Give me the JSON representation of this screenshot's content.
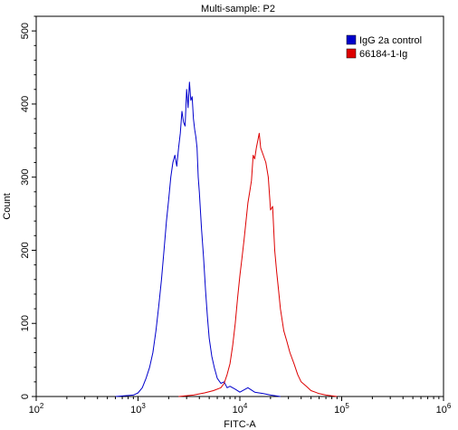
{
  "chart_data": {
    "type": "line",
    "title": "Multi-sample: P2",
    "xlabel": "FITC-A",
    "ylabel": "Count",
    "x_scale": "log",
    "xlim": [
      100,
      1000000
    ],
    "ylim": [
      0,
      520
    ],
    "x_ticks": [
      {
        "value": 100,
        "base": "10",
        "exp": "2"
      },
      {
        "value": 1000,
        "base": "10",
        "exp": "3"
      },
      {
        "value": 10000,
        "base": "10",
        "exp": "4"
      },
      {
        "value": 100000,
        "base": "10",
        "exp": "5"
      },
      {
        "value": 1000000,
        "base": "10",
        "exp": "6"
      }
    ],
    "y_ticks": [
      0,
      100,
      200,
      300,
      400,
      500
    ],
    "grid": false,
    "legend_position": "top-right",
    "series": [
      {
        "name": "IgG 2a control",
        "color": "#0000cc",
        "x": [
          600,
          900,
          1000,
          1100,
          1200,
          1300,
          1400,
          1500,
          1600,
          1700,
          1800,
          1900,
          2000,
          2100,
          2200,
          2300,
          2400,
          2500,
          2600,
          2700,
          2800,
          2900,
          3000,
          3100,
          3200,
          3300,
          3400,
          3500,
          3600,
          3700,
          3800,
          3900,
          4000,
          4200,
          4400,
          4600,
          4800,
          5000,
          5300,
          5600,
          6000,
          6500,
          7000,
          7500,
          8000,
          9000,
          10000,
          12000,
          14000,
          17000,
          20000,
          25000
        ],
        "y": [
          0,
          2,
          5,
          12,
          25,
          40,
          60,
          90,
          125,
          160,
          200,
          240,
          270,
          300,
          320,
          330,
          315,
          340,
          360,
          390,
          375,
          370,
          420,
          395,
          430,
          405,
          410,
          380,
          365,
          355,
          340,
          300,
          280,
          230,
          190,
          145,
          110,
          80,
          55,
          40,
          25,
          18,
          20,
          12,
          14,
          10,
          6,
          12,
          6,
          4,
          2,
          0
        ]
      },
      {
        "name": "66184-1-Ig",
        "color": "#dd0000",
        "x": [
          2500,
          3500,
          4500,
          5500,
          6500,
          7000,
          7500,
          8000,
          8500,
          9000,
          9500,
          10000,
          10500,
          11000,
          11500,
          12000,
          12500,
          13000,
          13500,
          14000,
          14500,
          15000,
          15500,
          16000,
          17000,
          18000,
          19000,
          20000,
          21000,
          22000,
          23000,
          24000,
          25000,
          27000,
          29000,
          31000,
          34000,
          37000,
          40000,
          45000,
          50000,
          55000,
          60000,
          70000,
          80000,
          90000
        ],
        "y": [
          0,
          2,
          5,
          8,
          12,
          18,
          30,
          45,
          70,
          100,
          135,
          165,
          190,
          215,
          240,
          265,
          280,
          295,
          330,
          325,
          340,
          350,
          360,
          340,
          330,
          320,
          300,
          255,
          260,
          200,
          170,
          145,
          120,
          90,
          75,
          60,
          45,
          30,
          20,
          14,
          8,
          6,
          4,
          2,
          1,
          0
        ]
      }
    ]
  }
}
